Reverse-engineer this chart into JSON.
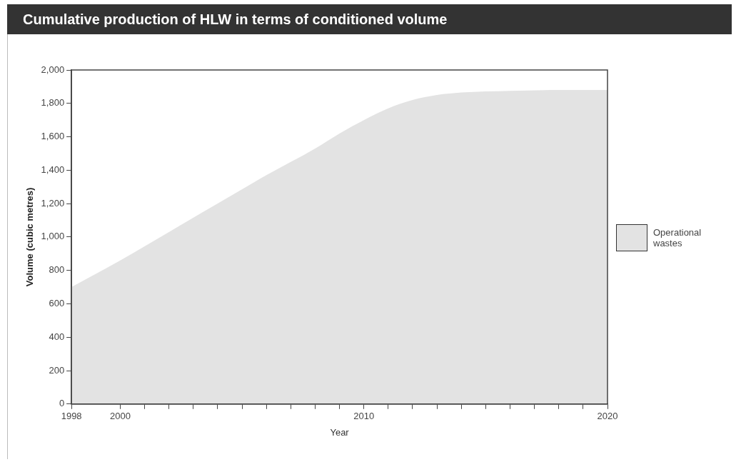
{
  "chart_data": {
    "type": "area",
    "title": "Cumulative production of HLW in terms of conditioned volume",
    "xlabel": "Year",
    "ylabel": "Volume (cubic metres)",
    "x": [
      1998,
      2000,
      2002,
      2004,
      2006,
      2008,
      2009,
      2010,
      2011,
      2012,
      2013,
      2014,
      2016,
      2018,
      2020
    ],
    "series": [
      {
        "name": "Operational wastes",
        "color": "#e3e3e3",
        "values": [
          700,
          860,
          1030,
          1200,
          1370,
          1530,
          1620,
          1700,
          1770,
          1820,
          1850,
          1865,
          1875,
          1880,
          1880
        ]
      }
    ],
    "xlim": [
      1998,
      2020
    ],
    "xticks": [
      1998,
      2000,
      {
        "value": 2001,
        "label": null
      },
      {
        "value": 2002,
        "label": null
      },
      {
        "value": 2003,
        "label": null
      },
      {
        "value": 2004,
        "label": null
      },
      {
        "value": 2005,
        "label": null
      },
      {
        "value": 2006,
        "label": null
      },
      {
        "value": 2007,
        "label": null
      },
      {
        "value": 2008,
        "label": null
      },
      {
        "value": 2009,
        "label": null
      },
      2010,
      {
        "value": 2011,
        "label": null
      },
      {
        "value": 2012,
        "label": null
      },
      {
        "value": 2013,
        "label": null
      },
      {
        "value": 2014,
        "label": null
      },
      {
        "value": 2015,
        "label": null
      },
      {
        "value": 2016,
        "label": null
      },
      {
        "value": 2017,
        "label": null
      },
      {
        "value": 2018,
        "label": null
      },
      {
        "value": 2019,
        "label": null
      },
      2020
    ],
    "ylim": [
      0,
      2000
    ],
    "yticks": [
      0,
      200,
      400,
      600,
      800,
      {
        "value": 1000,
        "label": "1,000"
      },
      {
        "value": 1200,
        "label": "1,200"
      },
      {
        "value": 1400,
        "label": "1,400"
      },
      {
        "value": 1600,
        "label": "1,600"
      },
      {
        "value": 1800,
        "label": "1,800"
      },
      {
        "value": 2000,
        "label": "2,000"
      }
    ],
    "grid": false,
    "legend": "right",
    "marker": "none"
  }
}
